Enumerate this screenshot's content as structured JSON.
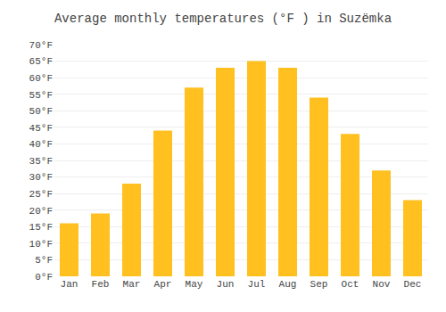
{
  "chart_data": {
    "type": "bar",
    "title": "Average monthly temperatures (°F ) in Suzëmka",
    "categories": [
      "Jan",
      "Feb",
      "Mar",
      "Apr",
      "May",
      "Jun",
      "Jul",
      "Aug",
      "Sep",
      "Oct",
      "Nov",
      "Dec"
    ],
    "values": [
      16,
      19,
      28,
      44,
      57,
      63,
      65,
      63,
      54,
      43,
      32,
      23
    ],
    "color": "#FFC020",
    "ylim": [
      0,
      70
    ],
    "yticks": [
      {
        "value": 0,
        "label": "0°F"
      },
      {
        "value": 5,
        "label": "5°F"
      },
      {
        "value": 10,
        "label": "10°F"
      },
      {
        "value": 15,
        "label": "15°F"
      },
      {
        "value": 20,
        "label": "20°F"
      },
      {
        "value": 25,
        "label": "25°F"
      },
      {
        "value": 30,
        "label": "30°F"
      },
      {
        "value": 35,
        "label": "35°F"
      },
      {
        "value": 40,
        "label": "40°F"
      },
      {
        "value": 45,
        "label": "45°F"
      },
      {
        "value": 50,
        "label": "50°F"
      },
      {
        "value": 55,
        "label": "55°F"
      },
      {
        "value": 60,
        "label": "60°F"
      },
      {
        "value": 65,
        "label": "65°F"
      },
      {
        "value": 70,
        "label": "70°F"
      }
    ],
    "grid": true
  }
}
